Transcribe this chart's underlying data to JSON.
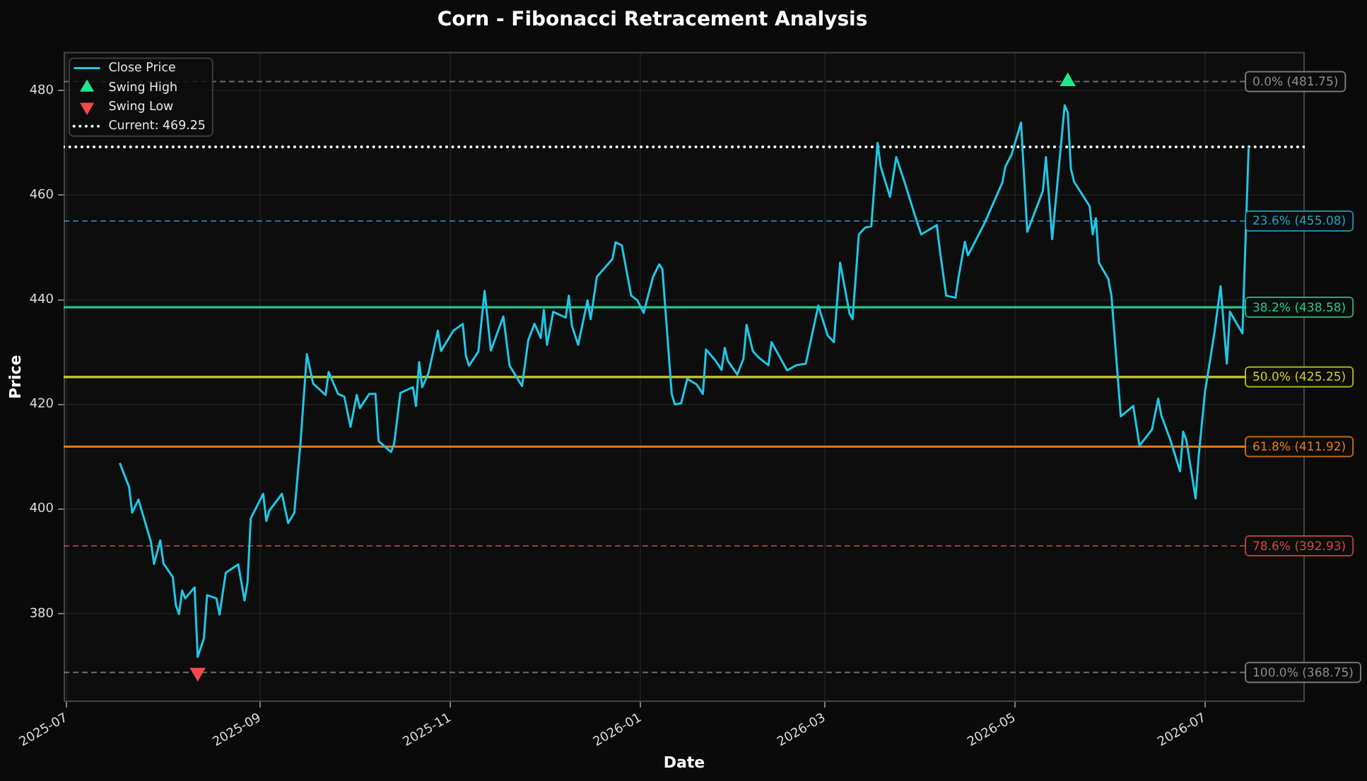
{
  "chart_data": {
    "type": "line",
    "title": "Corn - Fibonacci Retracement Analysis",
    "xlabel": "Date",
    "ylabel": "Price",
    "xlim": [
      "2025-06-30",
      "2026-08-02"
    ],
    "xticks": [
      "2025-07",
      "2025-09",
      "2025-11",
      "2026-01",
      "2026-03",
      "2026-05",
      "2026-07"
    ],
    "ylim": [
      363.1,
      487.4
    ],
    "yticks": [
      380,
      400,
      420,
      440,
      460,
      480
    ],
    "grid": true,
    "legend": "top left",
    "series": [
      {
        "name": "Close Price",
        "color": "#1ec8e6",
        "x": [
          "2025-07-18",
          "2025-07-21",
          "2025-07-22",
          "2025-07-24",
          "2025-07-28",
          "2025-07-29",
          "2025-07-31",
          "2025-08-01",
          "2025-08-04",
          "2025-08-05",
          "2025-08-06",
          "2025-08-07",
          "2025-08-08",
          "2025-08-11",
          "2025-08-12",
          "2025-08-14",
          "2025-08-15",
          "2025-08-18",
          "2025-08-19",
          "2025-08-21",
          "2025-08-25",
          "2025-08-27",
          "2025-08-28",
          "2025-08-29",
          "2025-09-02",
          "2025-09-03",
          "2025-09-04",
          "2025-09-08",
          "2025-09-10",
          "2025-09-12",
          "2025-09-14",
          "2025-09-16",
          "2025-09-18",
          "2025-09-22",
          "2025-09-23",
          "2025-09-26",
          "2025-09-28",
          "2025-09-30",
          "2025-10-02",
          "2025-10-03",
          "2025-10-06",
          "2025-10-08",
          "2025-10-09",
          "2025-10-13",
          "2025-10-14",
          "2025-10-16",
          "2025-10-20",
          "2025-10-21",
          "2025-10-22",
          "2025-10-23",
          "2025-10-25",
          "2025-10-28",
          "2025-10-29",
          "2025-11-02",
          "2025-11-05",
          "2025-11-06",
          "2025-11-07",
          "2025-11-10",
          "2025-11-12",
          "2025-11-14",
          "2025-11-18",
          "2025-11-20",
          "2025-11-24",
          "2025-11-26",
          "2025-11-28",
          "2025-11-30",
          "2025-12-01",
          "2025-12-02",
          "2025-12-04",
          "2025-12-08",
          "2025-12-09",
          "2025-12-10",
          "2025-12-12",
          "2025-12-15",
          "2025-12-16",
          "2025-12-18",
          "2025-12-23",
          "2025-12-24",
          "2025-12-26",
          "2025-12-29",
          "2025-12-31",
          "2026-01-02",
          "2026-01-05",
          "2026-01-07",
          "2026-01-08",
          "2026-01-11",
          "2026-01-12",
          "2026-01-14",
          "2026-01-16",
          "2026-01-19",
          "2026-01-21",
          "2026-01-22",
          "2026-01-25",
          "2026-01-27",
          "2026-01-28",
          "2026-01-29",
          "2026-02-01",
          "2026-02-03",
          "2026-02-04",
          "2026-02-06",
          "2026-02-08",
          "2026-02-11",
          "2026-02-12",
          "2026-02-17",
          "2026-02-20",
          "2026-02-23",
          "2026-02-27",
          "2026-03-02",
          "2026-03-04",
          "2026-03-06",
          "2026-03-09",
          "2026-03-10",
          "2026-03-12",
          "2026-03-14",
          "2026-03-16",
          "2026-03-18",
          "2026-03-19",
          "2026-03-22",
          "2026-03-24",
          "2026-03-27",
          "2026-03-30",
          "2026-04-01",
          "2026-04-06",
          "2026-04-07",
          "2026-04-09",
          "2026-04-12",
          "2026-04-13",
          "2026-04-15",
          "2026-04-16",
          "2026-04-21",
          "2026-04-22",
          "2026-04-27",
          "2026-04-28",
          "2026-04-30",
          "2026-05-03",
          "2026-05-05",
          "2026-05-07",
          "2026-05-10",
          "2026-05-11",
          "2026-05-13",
          "2026-05-17",
          "2026-05-18",
          "2026-05-19",
          "2026-05-20",
          "2026-05-25",
          "2026-05-26",
          "2026-05-27",
          "2026-05-28",
          "2026-05-31",
          "2026-06-01",
          "2026-06-04",
          "2026-06-08",
          "2026-06-10",
          "2026-06-14",
          "2026-06-16",
          "2026-06-17",
          "2026-06-20",
          "2026-06-23",
          "2026-06-24",
          "2026-06-25",
          "2026-06-28",
          "2026-06-29",
          "2026-07-01",
          "2026-07-04",
          "2026-07-06",
          "2026-07-08",
          "2026-07-09",
          "2026-07-13",
          "2026-07-15"
        ],
        "values": [
          408.8,
          404.2,
          399.3,
          401.8,
          393.7,
          389.5,
          394.0,
          389.6,
          387.0,
          381.6,
          379.9,
          384.4,
          382.9,
          385.0,
          371.7,
          375.3,
          383.5,
          382.9,
          379.8,
          387.8,
          389.4,
          382.5,
          386.1,
          398.2,
          402.9,
          397.7,
          399.7,
          402.9,
          397.3,
          399.3,
          413.0,
          429.6,
          424.0,
          421.8,
          426.2,
          422.0,
          421.5,
          415.7,
          421.8,
          419.3,
          422.0,
          422.0,
          413.0,
          410.9,
          412.5,
          422.2,
          423.3,
          419.7,
          428.1,
          423.3,
          426.0,
          434.1,
          430.2,
          434.1,
          435.4,
          429.3,
          427.4,
          430.1,
          441.7,
          430.3,
          436.8,
          427.4,
          423.5,
          432.3,
          435.4,
          432.7,
          438.1,
          431.4,
          437.7,
          436.6,
          440.8,
          435.0,
          431.4,
          439.9,
          436.3,
          444.4,
          447.8,
          451.0,
          450.4,
          440.8,
          439.9,
          437.5,
          444.4,
          446.8,
          445.9,
          422.0,
          420.0,
          420.2,
          424.9,
          423.8,
          422.0,
          430.5,
          428.4,
          426.6,
          430.8,
          428.3,
          425.7,
          428.7,
          435.2,
          430.2,
          428.9,
          427.5,
          431.9,
          426.5,
          427.5,
          427.8,
          438.9,
          433.2,
          431.9,
          447.1,
          437.4,
          436.3,
          452.5,
          453.8,
          454.1,
          470.0,
          465.5,
          459.7,
          467.3,
          461.9,
          456.1,
          452.5,
          454.3,
          449.4,
          440.8,
          440.4,
          444.4,
          451.1,
          448.5,
          454.3,
          455.6,
          462.4,
          465.5,
          467.8,
          473.9,
          453.0,
          456.1,
          460.8,
          467.3,
          451.6,
          477.2,
          475.8,
          465.1,
          462.6,
          457.9,
          452.5,
          455.6,
          447.1,
          444.0,
          440.8,
          417.7,
          419.7,
          412.1,
          415.2,
          421.1,
          417.9,
          413.0,
          407.2,
          414.8,
          413.2,
          402.0,
          410.3,
          422.4,
          433.6,
          442.6,
          427.8,
          437.7,
          433.6,
          469.25
        ]
      },
      {
        "name": "Swing High",
        "type": "scatter",
        "color": "#1de88a",
        "marker": "triangle",
        "x": [
          "2026-05-18"
        ],
        "values": [
          481.75
        ]
      },
      {
        "name": "Swing Low",
        "type": "scatter",
        "color": "#f24a4a",
        "marker": "triangle-down",
        "x": [
          "2025-08-12"
        ],
        "values": [
          368.75
        ]
      },
      {
        "name": "Current: 469.25",
        "color": "#ffffff",
        "line_style": "dotted",
        "x": [
          "2025-06-30",
          "2026-08-02"
        ],
        "values": [
          469.25,
          469.25
        ]
      }
    ],
    "ref_lines": [
      {
        "axis": "y",
        "value": 481.75,
        "label": "0.0% (481.75)",
        "color": "#8c8c8c",
        "line_style": "dashed"
      },
      {
        "axis": "y",
        "value": 455.08,
        "label": "23.6% (455.08)",
        "color": "#1fa3c4",
        "line_style": "dashed"
      },
      {
        "axis": "y",
        "value": 438.58,
        "label": "38.2% (438.58)",
        "color": "#26c98a",
        "line_style": "solid"
      },
      {
        "axis": "y",
        "value": 425.25,
        "label": "50.0% (425.25)",
        "color": "#cccc2e",
        "line_style": "solid"
      },
      {
        "axis": "y",
        "value": 411.92,
        "label": "61.8% (411.92)",
        "color": "#e07a1c",
        "line_style": "solid"
      },
      {
        "axis": "y",
        "value": 392.93,
        "label": "78.6% (392.93)",
        "color": "#d14848",
        "line_style": "dashed"
      },
      {
        "axis": "y",
        "value": 368.75,
        "label": "100.0% (368.75)",
        "color": "#8c8c8c",
        "line_style": "dashed"
      }
    ]
  }
}
